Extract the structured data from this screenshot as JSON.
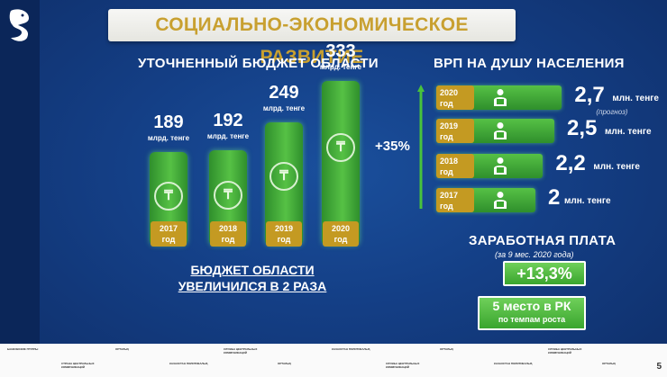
{
  "title": "СОЦИАЛЬНО-ЭКОНОМИЧЕСКОЕ РАЗВИТИЕ",
  "budget": {
    "heading": "УТОЧНЕННЫЙ БЮДЖЕТ ОБЛАСТИ",
    "unit": "млрд. тенге",
    "year_suffix": "год",
    "coin_symbol": "₸",
    "bars": [
      {
        "year": "2017",
        "value": "189"
      },
      {
        "year": "2018",
        "value": "192"
      },
      {
        "year": "2019",
        "value": "249"
      },
      {
        "year": "2020",
        "value": "333"
      }
    ],
    "summary_line1": "БЮДЖЕТ ОБЛАСТИ",
    "summary_line2": "УВЕЛИЧИЛСЯ В 2 РАЗА"
  },
  "vrp": {
    "heading": "ВРП НА ДУШУ НАСЕЛЕНИЯ",
    "growth": "+35%",
    "unit": "млн. тенге",
    "year_suffix": "год",
    "rows": [
      {
        "year": "2020",
        "value": "2,7",
        "note": "(прогноз)"
      },
      {
        "year": "2019",
        "value": "2,5",
        "note": ""
      },
      {
        "year": "2018",
        "value": "2,2",
        "note": ""
      },
      {
        "year": "2017",
        "value": "2",
        "note": ""
      }
    ]
  },
  "salary": {
    "heading": "ЗАРАБОТНАЯ ПЛАТА",
    "period": "(за 9 мес. 2020 года)",
    "growth": "+13,3%",
    "rank_line1": "5 место в РК",
    "rank_line2": "по темпам роста"
  },
  "footer": {
    "labels": [
      "БАНКОВСКИЕ ГРУППЫ",
      "СТРАНА ЦЕНТРАЛЬНЫХ КОММУНИКАЦИЙ",
      "ОРТАЛЫҚ",
      "КАЗАХСТАН ПОЛИТИКАЛЫҚ",
      "СЛУЖБА ЦЕНТРАЛЬНЫХ КОММУНИКАЦИЙ",
      "ОРТАЛЫҚ",
      "КАЗАХСТАН ПОЛИТИКАЛЫҚ",
      "СЛУЖБА ЦЕНТРАЛЬНЫХ КОММУНИКАЦИЙ",
      "ОРТАЛЫҚ",
      "КАЗАХСТАН ПОЛИТИКАЛЫҚ",
      "СЛУЖБА ЦЕНТРАЛЬНЫХ КОММУНИКАЦИЙ",
      "ОРТАЛЫҚ"
    ],
    "page_number": "5"
  },
  "colors": {
    "accent_gold": "#c49a22",
    "bar_green": "#56c145",
    "background_blue": "#143f86"
  }
}
